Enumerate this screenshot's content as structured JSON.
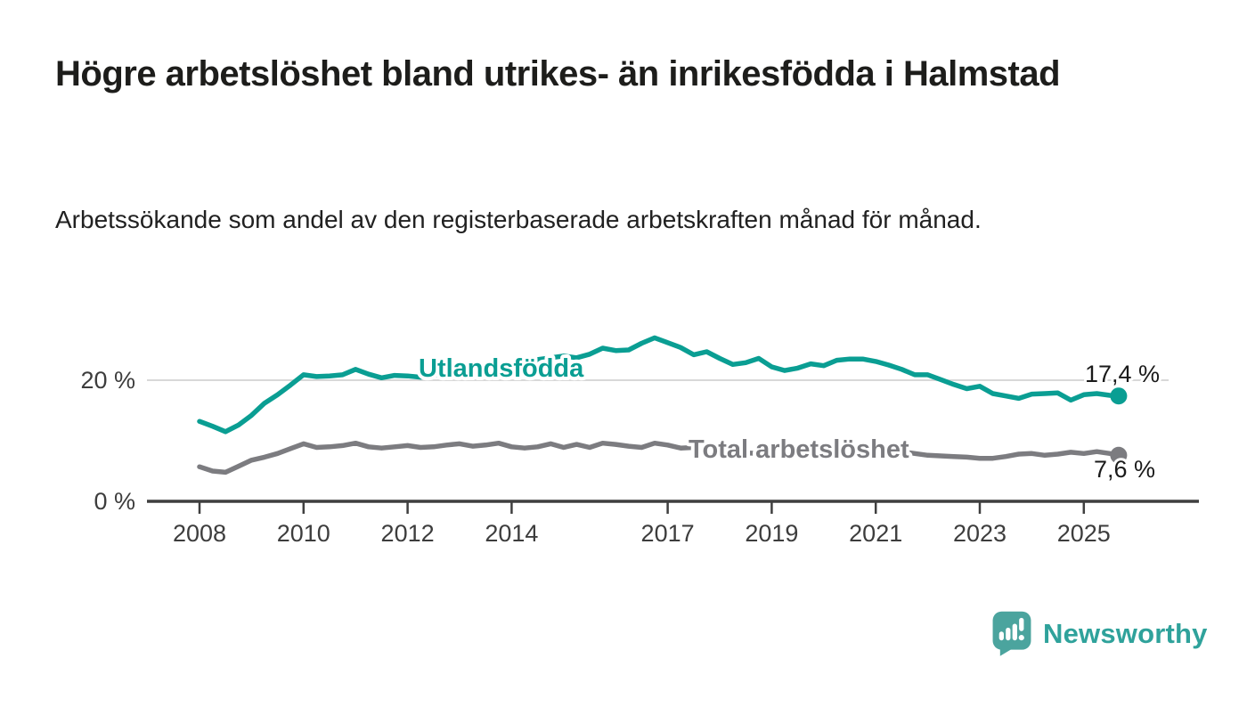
{
  "header": {
    "title": "Högre arbetslöshet bland utrikes- än inrikesfödda i Halmstad",
    "subtitle": "Arbetssökande som andel av den registerbaserade arbetskraften månad för månad."
  },
  "colors": {
    "accent_teal": "#0a9e93",
    "neutral_gray": "#7c7c80",
    "title_text": "#1d1d1b",
    "body_text": "#212121",
    "axis": "#3f3f3f",
    "tick_text": "#3d3d3d",
    "gridline": "#d8d8d8",
    "value_label_text": "#1a1a1a",
    "logo_icon": "#4ba49e",
    "logo_text": "#2fa29b"
  },
  "chart_data": {
    "type": "line",
    "title": "Högre arbetslöshet bland utrikes- än inrikesfödda i Halmstad",
    "subtitle": "Arbetssökande som andel av den registerbaserade arbetskraften månad för månad.",
    "xlabel": "",
    "ylabel": "",
    "ylim": [
      0,
      30
    ],
    "grid": "horizontal gridline at 20 % only",
    "legend_position": "inline labels on lines",
    "x": [
      2008,
      2008.25,
      2008.5,
      2008.75,
      2009,
      2009.25,
      2009.5,
      2009.75,
      2010,
      2010.25,
      2010.5,
      2010.75,
      2011,
      2011.25,
      2011.5,
      2011.75,
      2012,
      2012.25,
      2012.5,
      2012.75,
      2013,
      2013.25,
      2013.5,
      2013.75,
      2014,
      2014.25,
      2014.5,
      2014.75,
      2015,
      2015.25,
      2015.5,
      2015.75,
      2016,
      2016.25,
      2016.5,
      2016.75,
      2017,
      2017.25,
      2017.5,
      2017.75,
      2018,
      2018.25,
      2018.5,
      2018.75,
      2019,
      2019.25,
      2019.5,
      2019.75,
      2020,
      2020.25,
      2020.5,
      2020.75,
      2021,
      2021.25,
      2021.5,
      2021.75,
      2022,
      2022.25,
      2022.5,
      2022.75,
      2023,
      2023.25,
      2023.5,
      2023.75,
      2024,
      2024.25,
      2024.5,
      2024.75,
      2025,
      2025.25,
      2025.5,
      2025.67
    ],
    "series": [
      {
        "name": "Utlandsfödda",
        "color": "#0a9e93",
        "end_label": "17,4 %",
        "end_value": 17.4,
        "values": [
          13.2,
          12.4,
          11.5,
          12.6,
          14.2,
          16.2,
          17.6,
          19.2,
          20.9,
          20.6,
          20.7,
          20.9,
          21.8,
          21.0,
          20.4,
          20.8,
          20.7,
          20.5,
          20.8,
          21.1,
          21.4,
          21.7,
          22.0,
          22.4,
          22.8,
          23.2,
          23.4,
          23.7,
          24.0,
          23.7,
          24.3,
          25.3,
          24.9,
          25.0,
          26.1,
          27.0,
          26.2,
          25.4,
          24.2,
          24.7,
          23.6,
          22.6,
          22.9,
          23.6,
          22.2,
          21.6,
          22.0,
          22.7,
          22.4,
          23.3,
          23.5,
          23.5,
          23.1,
          22.5,
          21.8,
          20.9,
          20.9,
          20.1,
          19.3,
          18.6,
          19.0,
          17.8,
          17.4,
          17.0,
          17.7,
          17.8,
          17.9,
          16.7,
          17.6,
          17.8,
          17.5,
          17.4
        ]
      },
      {
        "name": "Total arbetslöshet",
        "color": "#7c7c80",
        "end_label": "7,6 %",
        "end_value": 7.6,
        "values": [
          5.7,
          5.0,
          4.8,
          5.8,
          6.8,
          7.3,
          7.9,
          8.7,
          9.5,
          8.9,
          9.0,
          9.2,
          9.6,
          9.0,
          8.8,
          9.0,
          9.2,
          8.9,
          9.0,
          9.3,
          9.5,
          9.1,
          9.3,
          9.6,
          9.0,
          8.8,
          9.0,
          9.5,
          8.9,
          9.4,
          8.9,
          9.6,
          9.4,
          9.1,
          8.9,
          9.6,
          9.3,
          8.8,
          8.9,
          8.7,
          8.4,
          8.1,
          8.0,
          7.9,
          7.7,
          7.5,
          7.6,
          7.8,
          8.0,
          8.8,
          9.2,
          9.0,
          8.8,
          8.5,
          8.2,
          7.9,
          7.6,
          7.5,
          7.4,
          7.3,
          7.1,
          7.1,
          7.4,
          7.8,
          7.9,
          7.6,
          7.8,
          8.1,
          7.9,
          8.2,
          7.9,
          7.6
        ]
      }
    ],
    "x_ticks": [
      {
        "value": 2008,
        "label": "2008"
      },
      {
        "value": 2010,
        "label": "2010"
      },
      {
        "value": 2012,
        "label": "2012"
      },
      {
        "value": 2014,
        "label": "2014"
      },
      {
        "value": 2017,
        "label": "2017"
      },
      {
        "value": 2019,
        "label": "2019"
      },
      {
        "value": 2021,
        "label": "2021"
      },
      {
        "value": 2023,
        "label": "2023"
      },
      {
        "value": 2025,
        "label": "2025"
      }
    ],
    "y_ticks": [
      {
        "value": 0,
        "label": "0 %"
      },
      {
        "value": 20,
        "label": "20 %"
      }
    ]
  },
  "footer": {
    "brand": "Newsworthy"
  }
}
